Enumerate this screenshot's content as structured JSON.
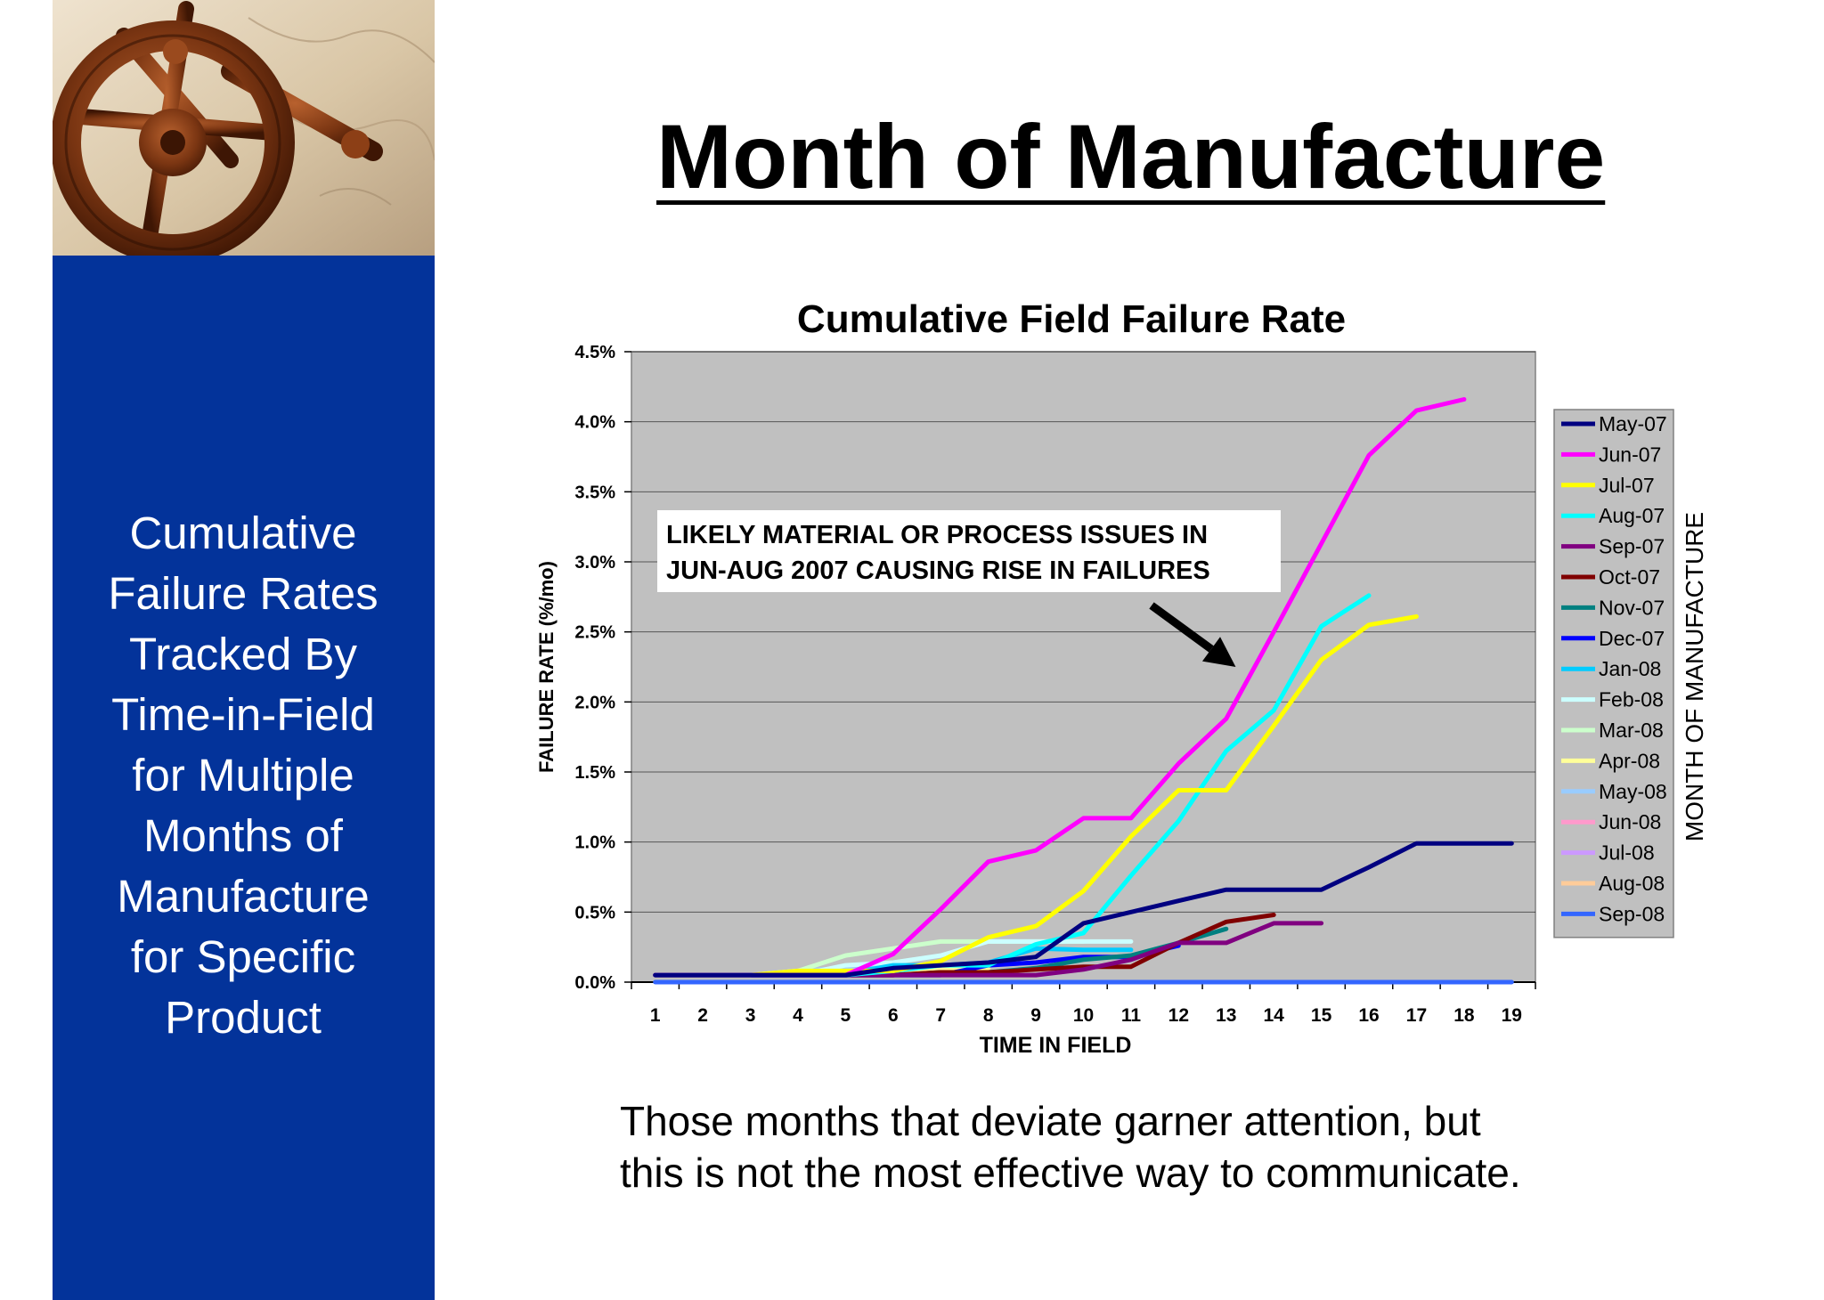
{
  "slide": {
    "title": "Month of Manufacture",
    "side_lines": [
      "Cumulative",
      "Failure Rates",
      "Tracked By",
      "Time-in-Field",
      "for Multiple",
      "Months of",
      "Manufacture",
      "for Specific",
      "Product"
    ],
    "caption_lines": [
      "Those months that deviate garner attention, but",
      "this is not the most effective way to communicate."
    ]
  },
  "colors": {
    "side_panel": "#03339a",
    "plot_bg": "#c0c0c0"
  },
  "chart_data": {
    "type": "line",
    "title": "Cumulative Field Failure Rate",
    "xlabel": "TIME IN FIELD",
    "ylabel": "FAILURE RATE (%/mo)",
    "legend_title": "MONTH OF MANUFACTURE",
    "legend_position": "right",
    "grid": true,
    "x": [
      1,
      2,
      3,
      4,
      5,
      6,
      7,
      8,
      9,
      10,
      11,
      12,
      13,
      14,
      15,
      16,
      17,
      18,
      19
    ],
    "xlim": [
      0.5,
      19.5
    ],
    "ylim": [
      0,
      4.5
    ],
    "yticks": [
      0.0,
      0.5,
      1.0,
      1.5,
      2.0,
      2.5,
      3.0,
      3.5,
      4.0,
      4.5
    ],
    "ytick_labels": [
      "0.0%",
      "0.5%",
      "1.0%",
      "1.5%",
      "2.0%",
      "2.5%",
      "3.0%",
      "3.5%",
      "4.0%",
      "4.5%"
    ],
    "annotation": {
      "lines": [
        "LIKELY MATERIAL OR PROCESS ISSUES IN",
        "JUN-AUG 2007 CAUSING RISE IN FAILURES"
      ],
      "arrow_target": [
        13.2,
        2.25
      ]
    },
    "series": [
      {
        "name": "May-07",
        "color": "#000080",
        "values": [
          0.05,
          0.05,
          0.05,
          0.05,
          0.05,
          0.1,
          0.12,
          0.14,
          0.18,
          0.42,
          0.5,
          0.58,
          0.66,
          0.66,
          0.66,
          0.82,
          0.99,
          0.99,
          0.99
        ]
      },
      {
        "name": "Jun-07",
        "color": "#ff00ff",
        "values": [
          0.05,
          0.05,
          0.05,
          0.05,
          0.05,
          0.2,
          0.52,
          0.86,
          0.94,
          1.17,
          1.17,
          1.56,
          1.88,
          2.5,
          3.13,
          3.76,
          4.08,
          4.16,
          null
        ]
      },
      {
        "name": "Jul-07",
        "color": "#ffff00",
        "values": [
          0.05,
          0.05,
          0.05,
          0.08,
          0.08,
          0.08,
          0.15,
          0.32,
          0.4,
          0.65,
          1.04,
          1.37,
          1.37,
          1.83,
          2.3,
          2.55,
          2.61,
          null,
          null
        ]
      },
      {
        "name": "Aug-07",
        "color": "#00ffff",
        "values": [
          0.05,
          0.05,
          0.05,
          0.05,
          0.05,
          0.08,
          0.12,
          0.12,
          0.27,
          0.35,
          0.76,
          1.15,
          1.65,
          1.94,
          2.54,
          2.76,
          null,
          null,
          null
        ]
      },
      {
        "name": "Sep-07",
        "color": "#800080",
        "values": [
          0.05,
          0.05,
          0.05,
          0.05,
          0.05,
          0.05,
          0.05,
          0.05,
          0.05,
          0.09,
          0.16,
          0.28,
          0.28,
          0.42,
          0.42,
          null,
          null,
          null,
          null
        ]
      },
      {
        "name": "Oct-07",
        "color": "#800000",
        "values": [
          0.05,
          0.05,
          0.05,
          0.05,
          0.05,
          0.05,
          0.07,
          0.07,
          0.09,
          0.11,
          0.11,
          0.28,
          0.43,
          0.48,
          null,
          null,
          null,
          null,
          null
        ]
      },
      {
        "name": "Nov-07",
        "color": "#008080",
        "values": [
          0.05,
          0.05,
          0.05,
          0.05,
          0.05,
          0.05,
          0.07,
          0.07,
          0.1,
          0.16,
          0.19,
          0.28,
          0.38,
          null,
          null,
          null,
          null,
          null,
          null
        ]
      },
      {
        "name": "Dec-07",
        "color": "#0000ff",
        "values": [
          0.05,
          0.05,
          0.05,
          0.05,
          0.05,
          0.05,
          0.05,
          0.12,
          0.14,
          0.18,
          0.18,
          0.26,
          null,
          null,
          null,
          null,
          null,
          null,
          null
        ]
      },
      {
        "name": "Jan-08",
        "color": "#00ccff",
        "values": [
          0.05,
          0.05,
          0.05,
          0.05,
          0.06,
          0.12,
          0.12,
          0.14,
          0.24,
          0.23,
          0.23,
          null,
          null,
          null,
          null,
          null,
          null,
          null,
          null
        ]
      },
      {
        "name": "Feb-08",
        "color": "#ccffff",
        "values": [
          0.05,
          0.05,
          0.05,
          0.05,
          0.12,
          0.14,
          0.19,
          0.29,
          0.29,
          0.29,
          0.29,
          null,
          null,
          null,
          null,
          null,
          null,
          null,
          null
        ]
      },
      {
        "name": "Mar-08",
        "color": "#ccffcc",
        "values": [
          0.05,
          0.05,
          0.05,
          0.08,
          0.19,
          0.24,
          0.29,
          0.29,
          0.29,
          0.29,
          null,
          null,
          null,
          null,
          null,
          null,
          null,
          null,
          null
        ]
      },
      {
        "name": "Apr-08",
        "color": "#ffff99",
        "values": [
          0.05,
          0.05,
          0.05,
          0.08,
          0.08,
          0.08,
          0.1,
          0.1,
          null,
          null,
          null,
          null,
          null,
          null,
          null,
          null,
          null,
          null,
          null
        ]
      },
      {
        "name": "May-08",
        "color": "#99ccff",
        "values": [
          0.05,
          0.05,
          0.05,
          0.08,
          0.1,
          0.1,
          0.1,
          null,
          null,
          null,
          null,
          null,
          null,
          null,
          null,
          null,
          null,
          null,
          null
        ]
      },
      {
        "name": "Jun-08",
        "color": "#ff99cc",
        "values": [
          0.05,
          0.05,
          0.05,
          0.05,
          0.05,
          0.05,
          null,
          null,
          null,
          null,
          null,
          null,
          null,
          null,
          null,
          null,
          null,
          null,
          null
        ]
      },
      {
        "name": "Jul-08",
        "color": "#cc99ff",
        "values": [
          0.05,
          0.05,
          0.05,
          0.05,
          0.05,
          null,
          null,
          null,
          null,
          null,
          null,
          null,
          null,
          null,
          null,
          null,
          null,
          null,
          null
        ]
      },
      {
        "name": "Aug-08",
        "color": "#ffcc99",
        "values": [
          0.05,
          0.05,
          0.05,
          0.05,
          null,
          null,
          null,
          null,
          null,
          null,
          null,
          null,
          null,
          null,
          null,
          null,
          null,
          null,
          null
        ]
      },
      {
        "name": "Sep-08",
        "color": "#3366ff",
        "values": [
          0.0,
          0.0,
          0.0,
          0.0,
          0.0,
          0.0,
          0.0,
          0.0,
          0.0,
          0.0,
          0.0,
          0.0,
          0.0,
          0.0,
          0.0,
          0.0,
          0.0,
          0.0,
          0.0
        ]
      }
    ]
  }
}
